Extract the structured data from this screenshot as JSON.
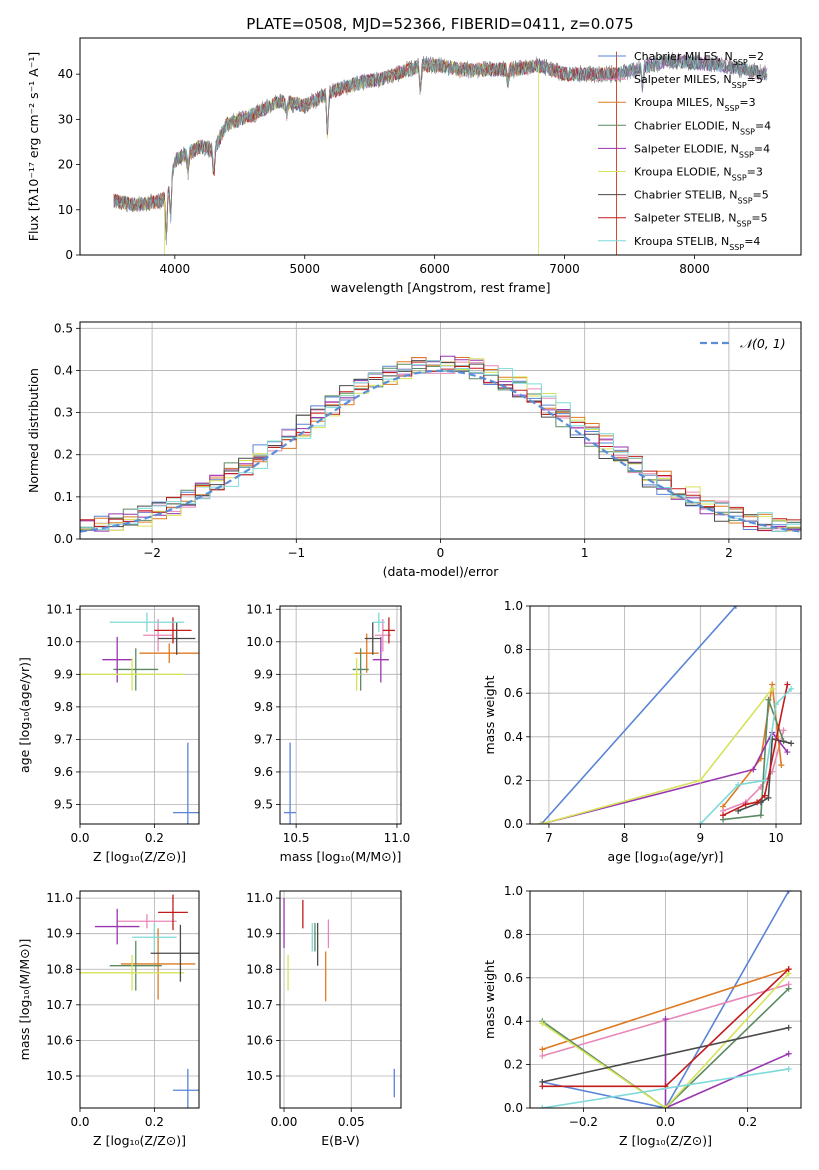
{
  "figure": {
    "title": "PLATE=0508, MJD=52366, FIBERID=0411, z=0.075"
  },
  "colors": {
    "Chabrier MILES": "#5a84d6",
    "Salpeter MILES": "#e887b7",
    "Kroupa MILES": "#de7a23",
    "Chabrier ELODIE": "#5a8a62",
    "Salpeter ELODIE": "#9a35b0",
    "Kroupa ELODIE": "#d6e35a",
    "Chabrier STELIB": "#4a4a4a",
    "Salpeter STELIB": "#c21b1b",
    "Kroupa STELIB": "#7fd9d9",
    "normal": "#5a8ed6",
    "grid": "#b0b0b0"
  },
  "chart_data": [
    {
      "id": "spectrum",
      "type": "line",
      "xlabel": "wavelength [Angstrom, rest frame]",
      "ylabel": "Flux [fλ10⁻¹⁷ erg cm⁻² s⁻¹ A⁻¹]",
      "xlim": [
        3270,
        8820
      ],
      "ylim": [
        0,
        48
      ],
      "xticks": [
        4000,
        5000,
        6000,
        7000,
        8000
      ],
      "yticks": [
        0,
        10,
        20,
        30,
        40
      ],
      "grid": false,
      "legend_position": "upper right",
      "legend": [
        {
          "label": "Chabrier MILES, NSSP=2",
          "main": "Chabrier MILES, N",
          "sub": "SSP",
          "tail": "=2"
        },
        {
          "label": "Salpeter MILES, NSSP=5",
          "main": "Salpeter MILES, N",
          "sub": "SSP",
          "tail": "=5"
        },
        {
          "label": "Kroupa MILES, NSSP=3",
          "main": "Kroupa MILES, N",
          "sub": "SSP",
          "tail": "=3"
        },
        {
          "label": "Chabrier ELODIE, NSSP=4",
          "main": "Chabrier ELODIE, N",
          "sub": "SSP",
          "tail": "=4"
        },
        {
          "label": "Salpeter ELODIE, NSSP=4",
          "main": "Salpeter ELODIE, N",
          "sub": "SSP",
          "tail": "=4"
        },
        {
          "label": "Kroupa ELODIE, NSSP=3",
          "main": "Kroupa ELODIE, N",
          "sub": "SSP",
          "tail": "=3"
        },
        {
          "label": "Chabrier STELIB, NSSP=5",
          "main": "Chabrier STELIB, N",
          "sub": "SSP",
          "tail": "=5"
        },
        {
          "label": "Salpeter STELIB, NSSP=5",
          "main": "Salpeter STELIB, N",
          "sub": "SSP",
          "tail": "=5"
        },
        {
          "label": "Kroupa STELIB, NSSP=4",
          "main": "Kroupa STELIB, N",
          "sub": "SSP",
          "tail": "=4"
        }
      ],
      "continuum": {
        "x": [
          3530,
          3700,
          3900,
          3950,
          4000,
          4200,
          4300,
          4400,
          4600,
          4800,
          5000,
          5200,
          5400,
          5600,
          5800,
          5900,
          6000,
          6200,
          6400,
          6600,
          6800,
          7000,
          7200,
          7400,
          7800,
          8200,
          8560
        ],
        "y": [
          12,
          11,
          12,
          14,
          21,
          24,
          23,
          29,
          31,
          34,
          33,
          36,
          38,
          39,
          41,
          42,
          42,
          41,
          41,
          41,
          42,
          40,
          40,
          40,
          43,
          42,
          40
        ]
      },
      "model_ranges": [
        [
          3530,
          8560
        ],
        [
          3530,
          8560
        ],
        [
          3530,
          7400
        ],
        [
          3530,
          8560
        ],
        [
          3530,
          8560
        ],
        [
          3530,
          6800
        ],
        [
          3530,
          8560
        ],
        [
          3530,
          7400
        ],
        [
          3530,
          8560
        ]
      ]
    },
    {
      "id": "residuals",
      "type": "step",
      "xlabel": "(data-model)/error",
      "ylabel": "Normed distribution",
      "xlim": [
        -2.5,
        2.5
      ],
      "ylim": [
        0,
        0.515
      ],
      "xticks": [
        -2,
        -1,
        0,
        1,
        2
      ],
      "xtick_labels": [
        "−2",
        "−1",
        "0",
        "1",
        "2"
      ],
      "yticks": [
        0.0,
        0.1,
        0.2,
        0.3,
        0.4,
        0.5
      ],
      "ytick_labels": [
        "0.0",
        "0.1",
        "0.2",
        "0.3",
        "0.4",
        "0.5"
      ],
      "grid": true,
      "legend_position": "upper right",
      "legend": [
        {
          "label": "𝒩(0, 1)"
        }
      ],
      "bin_width": 0.1
    },
    {
      "id": "age_vs_Z",
      "type": "errorbar",
      "xlabel": "Z [log₁₀(Z/Z⊙)]",
      "ylabel": "age  [log₁₀(age/yr)]",
      "xlim": [
        0,
        0.32
      ],
      "ylim": [
        9.44,
        10.11
      ],
      "xticks": [
        0.0,
        0.2
      ],
      "xtick_labels": [
        "0.0",
        "0.2"
      ],
      "yticks": [
        9.5,
        9.6,
        9.7,
        9.8,
        9.9,
        10.0,
        10.1
      ],
      "ytick_labels": [
        "9.5",
        "9.6",
        "9.7",
        "9.8",
        "9.9",
        "10.0",
        "10.1"
      ],
      "grid": true,
      "points": [
        {
          "model": "Chabrier MILES",
          "x": 0.29,
          "y": 9.475,
          "xerr": 0.04,
          "yerr": 0.215
        },
        {
          "model": "Salpeter MILES",
          "x": 0.21,
          "y": 10.02,
          "xerr": 0.04,
          "yerr": 0.05
        },
        {
          "model": "Kroupa MILES",
          "x": 0.24,
          "y": 9.965,
          "xerr": 0.08,
          "yerr": 0.03
        },
        {
          "model": "Chabrier ELODIE",
          "x": 0.15,
          "y": 9.915,
          "xerr": 0.06,
          "yerr": 0.065
        },
        {
          "model": "Salpeter ELODIE",
          "x": 0.1,
          "y": 9.945,
          "xerr": 0.04,
          "yerr": 0.07
        },
        {
          "model": "Kroupa ELODIE",
          "x": 0.14,
          "y": 9.9,
          "xerr": 0.14,
          "yerr": 0.05
        },
        {
          "model": "Chabrier STELIB",
          "x": 0.26,
          "y": 10.01,
          "xerr": 0.05,
          "yerr": 0.05
        },
        {
          "model": "Salpeter STELIB",
          "x": 0.25,
          "y": 10.035,
          "xerr": 0.05,
          "yerr": 0.04
        },
        {
          "model": "Kroupa STELIB",
          "x": 0.18,
          "y": 10.06,
          "xerr": 0.1,
          "yerr": 0.03
        }
      ]
    },
    {
      "id": "age_vs_mass",
      "type": "errorbar",
      "xlabel": "mass [log₁₀(M/M⊙)]",
      "ylabel": "",
      "xlim": [
        10.42,
        11.02
      ],
      "ylim": [
        9.44,
        10.11
      ],
      "xticks": [
        10.5,
        11.0
      ],
      "xtick_labels": [
        "10.5",
        "11.0"
      ],
      "yticks": [
        9.5,
        9.6,
        9.7,
        9.8,
        9.9,
        10.0,
        10.1
      ],
      "ytick_labels": [
        "9.5",
        "9.6",
        "9.7",
        "9.8",
        "9.9",
        "10.0",
        "10.1"
      ],
      "grid": true,
      "points": [
        {
          "model": "Chabrier MILES",
          "x": 10.47,
          "y": 9.475,
          "xerr": 0.03,
          "yerr": 0.215
        },
        {
          "model": "Salpeter MILES",
          "x": 10.93,
          "y": 10.02,
          "xerr": 0.04,
          "yerr": 0.05
        },
        {
          "model": "Kroupa MILES",
          "x": 10.85,
          "y": 9.965,
          "xerr": 0.06,
          "yerr": 0.06
        },
        {
          "model": "Chabrier ELODIE",
          "x": 10.82,
          "y": 9.915,
          "xerr": 0.04,
          "yerr": 0.065
        },
        {
          "model": "Salpeter ELODIE",
          "x": 10.92,
          "y": 9.945,
          "xerr": 0.04,
          "yerr": 0.07
        },
        {
          "model": "Kroupa ELODIE",
          "x": 10.8,
          "y": 9.9,
          "xerr": 0.02,
          "yerr": 0.05
        },
        {
          "model": "Chabrier STELIB",
          "x": 10.88,
          "y": 10.01,
          "xerr": 0.04,
          "yerr": 0.05
        },
        {
          "model": "Salpeter STELIB",
          "x": 10.96,
          "y": 10.035,
          "xerr": 0.03,
          "yerr": 0.04
        },
        {
          "model": "Kroupa STELIB",
          "x": 10.91,
          "y": 10.06,
          "xerr": 0.03,
          "yerr": 0.03
        }
      ]
    },
    {
      "id": "weight_vs_age",
      "type": "line",
      "xlabel": "age  [log₁₀(age/yr)]",
      "ylabel": "mass weight",
      "xlim": [
        6.75,
        10.33
      ],
      "ylim": [
        0,
        1
      ],
      "xticks": [
        7,
        8,
        9,
        10
      ],
      "xtick_labels": [
        "7",
        "8",
        "9",
        "10"
      ],
      "yticks": [
        0.0,
        0.2,
        0.4,
        0.6,
        0.8,
        1.0
      ],
      "ytick_labels": [
        "0.0",
        "0.2",
        "0.4",
        "0.6",
        "0.8",
        "1.0"
      ],
      "grid": true,
      "series": [
        {
          "model": "Chabrier MILES",
          "x": [
            6.9,
            9.47
          ],
          "y": [
            0.0,
            1.0
          ]
        },
        {
          "model": "Salpeter MILES",
          "x": [
            9.3,
            9.6,
            9.8,
            9.95,
            10.1
          ],
          "y": [
            0.06,
            0.1,
            0.17,
            0.24,
            0.43
          ]
        },
        {
          "model": "Kroupa MILES",
          "x": [
            9.3,
            9.8,
            9.95,
            10.07
          ],
          "y": [
            0.08,
            0.3,
            0.64,
            0.27
          ]
        },
        {
          "model": "Chabrier ELODIE",
          "x": [
            9.3,
            9.8,
            9.9,
            10.1
          ],
          "y": [
            0.02,
            0.04,
            0.57,
            0.38
          ]
        },
        {
          "model": "Salpeter ELODIE",
          "x": [
            6.9,
            9.7,
            9.95,
            10.15
          ],
          "y": [
            0.0,
            0.25,
            0.42,
            0.33
          ]
        },
        {
          "model": "Kroupa ELODIE",
          "x": [
            6.9,
            9.0,
            9.95
          ],
          "y": [
            0.0,
            0.2,
            0.62
          ]
        },
        {
          "model": "Chabrier STELIB",
          "x": [
            9.5,
            9.8,
            9.9,
            9.95,
            10.2
          ],
          "y": [
            0.06,
            0.1,
            0.12,
            0.39,
            0.37
          ]
        },
        {
          "model": "Salpeter STELIB",
          "x": [
            9.3,
            9.6,
            9.75,
            9.85,
            10.15
          ],
          "y": [
            0.04,
            0.09,
            0.1,
            0.13,
            0.64
          ]
        },
        {
          "model": "Kroupa STELIB",
          "x": [
            9.0,
            9.5,
            9.85,
            10.0,
            10.2
          ],
          "y": [
            0.0,
            0.18,
            0.2,
            0.55,
            0.62
          ]
        }
      ]
    },
    {
      "id": "mass_vs_Z",
      "type": "errorbar",
      "xlabel": "Z [log₁₀(Z/Z⊙)]",
      "ylabel": "mass [log₁₀(M/M⊙)]",
      "xlim": [
        0,
        0.32
      ],
      "ylim": [
        10.41,
        11.02
      ],
      "xticks": [
        0.0,
        0.2
      ],
      "xtick_labels": [
        "0.0",
        "0.2"
      ],
      "yticks": [
        10.5,
        10.6,
        10.7,
        10.8,
        10.9,
        11.0
      ],
      "ytick_labels": [
        "10.5",
        "10.6",
        "10.7",
        "10.8",
        "10.9",
        "11.0"
      ],
      "grid": true,
      "points": [
        {
          "model": "Chabrier MILES",
          "x": 0.29,
          "y": 10.46,
          "xerr": 0.04,
          "yerr": 0.06
        },
        {
          "model": "Salpeter MILES",
          "x": 0.18,
          "y": 10.935,
          "xerr": 0.08,
          "yerr": 0.02
        },
        {
          "model": "Kroupa MILES",
          "x": 0.21,
          "y": 10.815,
          "xerr": 0.1,
          "yerr": 0.1
        },
        {
          "model": "Chabrier ELODIE",
          "x": 0.15,
          "y": 10.81,
          "xerr": 0.07,
          "yerr": 0.07
        },
        {
          "model": "Salpeter ELODIE",
          "x": 0.1,
          "y": 10.92,
          "xerr": 0.06,
          "yerr": 0.05
        },
        {
          "model": "Kroupa ELODIE",
          "x": 0.14,
          "y": 10.79,
          "xerr": 0.14,
          "yerr": 0.05
        },
        {
          "model": "Chabrier STELIB",
          "x": 0.27,
          "y": 10.845,
          "xerr": 0.08,
          "yerr": 0.08
        },
        {
          "model": "Salpeter STELIB",
          "x": 0.25,
          "y": 10.96,
          "xerr": 0.04,
          "yerr": 0.05
        },
        {
          "model": "Kroupa STELIB",
          "x": 0.2,
          "y": 10.89,
          "xerr": 0.06,
          "yerr": 0.04
        }
      ]
    },
    {
      "id": "mass_vs_EBV",
      "type": "errorbar",
      "xlabel": "E(B-V)",
      "ylabel": "",
      "xlim": [
        -0.003,
        0.087
      ],
      "ylim": [
        10.41,
        11.02
      ],
      "xticks": [
        0.0,
        0.05
      ],
      "xtick_labels": [
        "0.00",
        "0.05"
      ],
      "yticks": [
        10.5,
        10.6,
        10.7,
        10.8,
        10.9,
        11.0
      ],
      "ytick_labels": [
        "10.5",
        "10.6",
        "10.7",
        "10.8",
        "10.9",
        "11.0"
      ],
      "grid": true,
      "points": [
        {
          "model": "Chabrier MILES",
          "x": 0.082,
          "y": 10.48,
          "xerr": 0,
          "yerr": 0.04
        },
        {
          "model": "Salpeter MILES",
          "x": 0.033,
          "y": 10.9,
          "xerr": 0,
          "yerr": 0.04
        },
        {
          "model": "Kroupa MILES",
          "x": 0.031,
          "y": 10.78,
          "xerr": 0,
          "yerr": 0.07
        },
        {
          "model": "Chabrier ELODIE",
          "x": 0.023,
          "y": 10.89,
          "xerr": 0,
          "yerr": 0.04
        },
        {
          "model": "Salpeter ELODIE",
          "x": 0.0,
          "y": 10.93,
          "xerr": 0,
          "yerr": 0.07
        },
        {
          "model": "Kroupa ELODIE",
          "x": 0.003,
          "y": 10.79,
          "xerr": 0,
          "yerr": 0.05
        },
        {
          "model": "Chabrier STELIB",
          "x": 0.025,
          "y": 10.87,
          "xerr": 0,
          "yerr": 0.06
        },
        {
          "model": "Salpeter STELIB",
          "x": 0.014,
          "y": 10.955,
          "xerr": 0,
          "yerr": 0.04
        },
        {
          "model": "Kroupa STELIB",
          "x": 0.021,
          "y": 10.89,
          "xerr": 0,
          "yerr": 0.04
        }
      ]
    },
    {
      "id": "weight_vs_Z",
      "type": "line",
      "xlabel": "Z [log₁₀(Z/Z⊙)]",
      "ylabel": "mass weight",
      "xlim": [
        -0.33,
        0.33
      ],
      "ylim": [
        0,
        1
      ],
      "xticks": [
        -0.2,
        0.0,
        0.2
      ],
      "xtick_labels": [
        "−0.2",
        "0.0",
        "0.2"
      ],
      "yticks": [
        0.0,
        0.2,
        0.4,
        0.6,
        0.8,
        1.0
      ],
      "ytick_labels": [
        "0.0",
        "0.2",
        "0.4",
        "0.6",
        "0.8",
        "1.0"
      ],
      "grid": true,
      "series": [
        {
          "model": "Chabrier MILES",
          "x": [
            -0.3,
            0.0,
            0.3
          ],
          "y": [
            0.12,
            0.0,
            1.0
          ]
        },
        {
          "model": "Salpeter MILES",
          "x": [
            -0.3,
            0.3
          ],
          "y": [
            0.24,
            0.57
          ]
        },
        {
          "model": "Kroupa MILES",
          "x": [
            -0.3,
            0.3
          ],
          "y": [
            0.27,
            0.64
          ]
        },
        {
          "model": "Chabrier ELODIE",
          "x": [
            -0.3,
            0.0,
            0.3
          ],
          "y": [
            0.4,
            0.0,
            0.55
          ]
        },
        {
          "model": "Salpeter ELODIE",
          "x": [
            0.0,
            0.0,
            0.3
          ],
          "y": [
            0.41,
            0.0,
            0.25
          ]
        },
        {
          "model": "Kroupa ELODIE",
          "x": [
            -0.3,
            0.0,
            0.3
          ],
          "y": [
            0.39,
            0.0,
            0.62
          ]
        },
        {
          "model": "Chabrier STELIB",
          "x": [
            -0.3,
            0.3
          ],
          "y": [
            0.12,
            0.37
          ]
        },
        {
          "model": "Salpeter STELIB",
          "x": [
            -0.3,
            0.0,
            0.3
          ],
          "y": [
            0.1,
            0.1,
            0.64
          ]
        },
        {
          "model": "Kroupa STELIB",
          "x": [
            -0.3,
            0.3
          ],
          "y": [
            0.0,
            0.18
          ]
        }
      ]
    }
  ]
}
